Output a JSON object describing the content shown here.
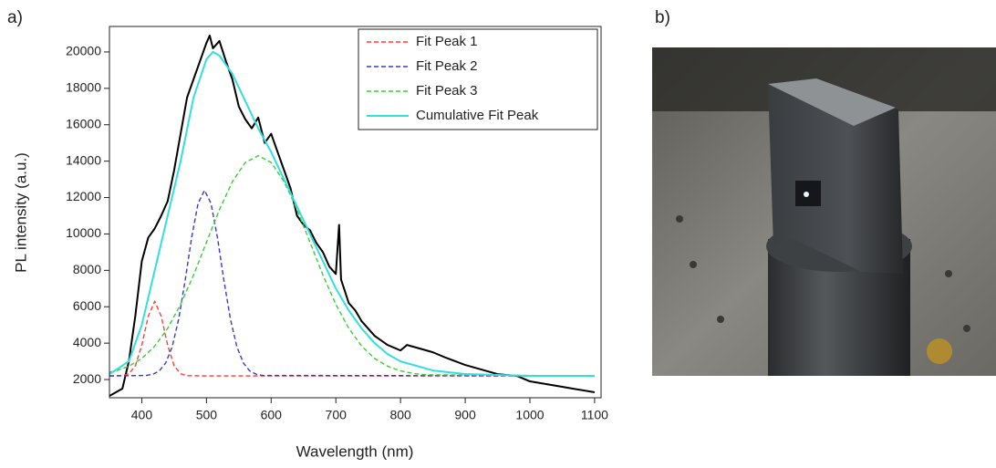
{
  "panel_labels": [
    "a)",
    "b)"
  ],
  "chart_data": {
    "type": "line",
    "x_label": "Wavelength (nm)",
    "y_label": "PL intensity (a.u.)",
    "xlim": [
      350,
      1110
    ],
    "ylim": [
      1000,
      21400
    ],
    "xticks": [
      400,
      500,
      600,
      700,
      800,
      900,
      1000,
      1100
    ],
    "yticks": [
      2000,
      4000,
      6000,
      8000,
      10000,
      12000,
      14000,
      16000,
      18000,
      20000
    ],
    "legend": "upper right",
    "series": [
      {
        "color": "#000000",
        "dash": false,
        "x": [
          350,
          360,
          370,
          380,
          390,
          400,
          410,
          420,
          430,
          440,
          450,
          460,
          470,
          480,
          490,
          500,
          505,
          510,
          520,
          530,
          540,
          550,
          560,
          570,
          580,
          590,
          600,
          610,
          620,
          630,
          640,
          650,
          660,
          670,
          680,
          690,
          700,
          705,
          708,
          720,
          730,
          740,
          760,
          780,
          800,
          810,
          830,
          850,
          870,
          900,
          950,
          980,
          1000,
          1050,
          1100
        ],
        "values": [
          1100,
          1300,
          1500,
          3000,
          5500,
          8500,
          9800,
          10300,
          11000,
          11800,
          13500,
          15500,
          17500,
          18500,
          19500,
          20500,
          20900,
          20200,
          20600,
          19500,
          18500,
          17000,
          16300,
          15800,
          16400,
          15000,
          15500,
          14500,
          13500,
          12500,
          11000,
          10500,
          10200,
          9500,
          9000,
          8200,
          7800,
          10500,
          7500,
          6200,
          5800,
          5200,
          4400,
          3900,
          3600,
          3900,
          3700,
          3500,
          3200,
          2800,
          2300,
          2200,
          1900,
          1600,
          1300
        ]
      },
      {
        "name": "Fit Peak 1",
        "color": "#ff3b3b",
        "dash": true,
        "x": [
          350,
          370,
          380,
          390,
          400,
          410,
          420,
          430,
          440,
          450,
          460,
          470,
          500,
          1100
        ],
        "values": [
          2200,
          2216,
          2315,
          2755,
          3885,
          5480,
          6300,
          5480,
          3885,
          2755,
          2315,
          2215,
          2200,
          2200
        ]
      },
      {
        "name": "Fit Peak 2",
        "color": "#3a3acc",
        "dash": true,
        "x": [
          350,
          407,
          417,
          427,
          437,
          447,
          457,
          467,
          477,
          487,
          497,
          507,
          517,
          527,
          537,
          547,
          557,
          567,
          577,
          587,
          1100
        ],
        "values": [
          2200,
          2226,
          2290,
          2471,
          2914,
          3801,
          5321,
          7443,
          9789,
          11676,
          12400,
          11676,
          9789,
          7443,
          5321,
          3801,
          2914,
          2471,
          2290,
          2226,
          2200
        ]
      },
      {
        "name": "Fit Peak 3",
        "color": "#3bcc3b",
        "dash": true,
        "x": [
          350,
          360,
          380,
          400,
          420,
          440,
          460,
          480,
          500,
          520,
          540,
          560,
          580,
          600,
          620,
          640,
          660,
          680,
          700,
          720,
          740,
          760,
          780,
          800,
          820,
          840,
          1100
        ],
        "values": [
          2400,
          2478,
          2732,
          3156,
          3834,
          4814,
          6133,
          7742,
          9545,
          11336,
          12872,
          13925,
          14300,
          13925,
          12872,
          11336,
          9545,
          7742,
          6133,
          4814,
          3834,
          3156,
          2732,
          2478,
          2333,
          2261,
          2200
        ]
      },
      {
        "name": "Cumulative Fit Peak",
        "color": "#33dede",
        "dash": false,
        "x": [
          350,
          380,
          400,
          420,
          440,
          460,
          480,
          500,
          510,
          520,
          540,
          560,
          580,
          600,
          620,
          640,
          660,
          680,
          700,
          720,
          740,
          760,
          780,
          800,
          850,
          900,
          1000,
          1100
        ],
        "values": [
          2300,
          3000,
          5000,
          8000,
          11000,
          14000,
          17500,
          19600,
          20000,
          19800,
          18800,
          17300,
          15800,
          14500,
          13000,
          11500,
          10000,
          8500,
          7000,
          5800,
          4800,
          4000,
          3400,
          3000,
          2500,
          2300,
          2200,
          2200
        ]
      }
    ]
  }
}
